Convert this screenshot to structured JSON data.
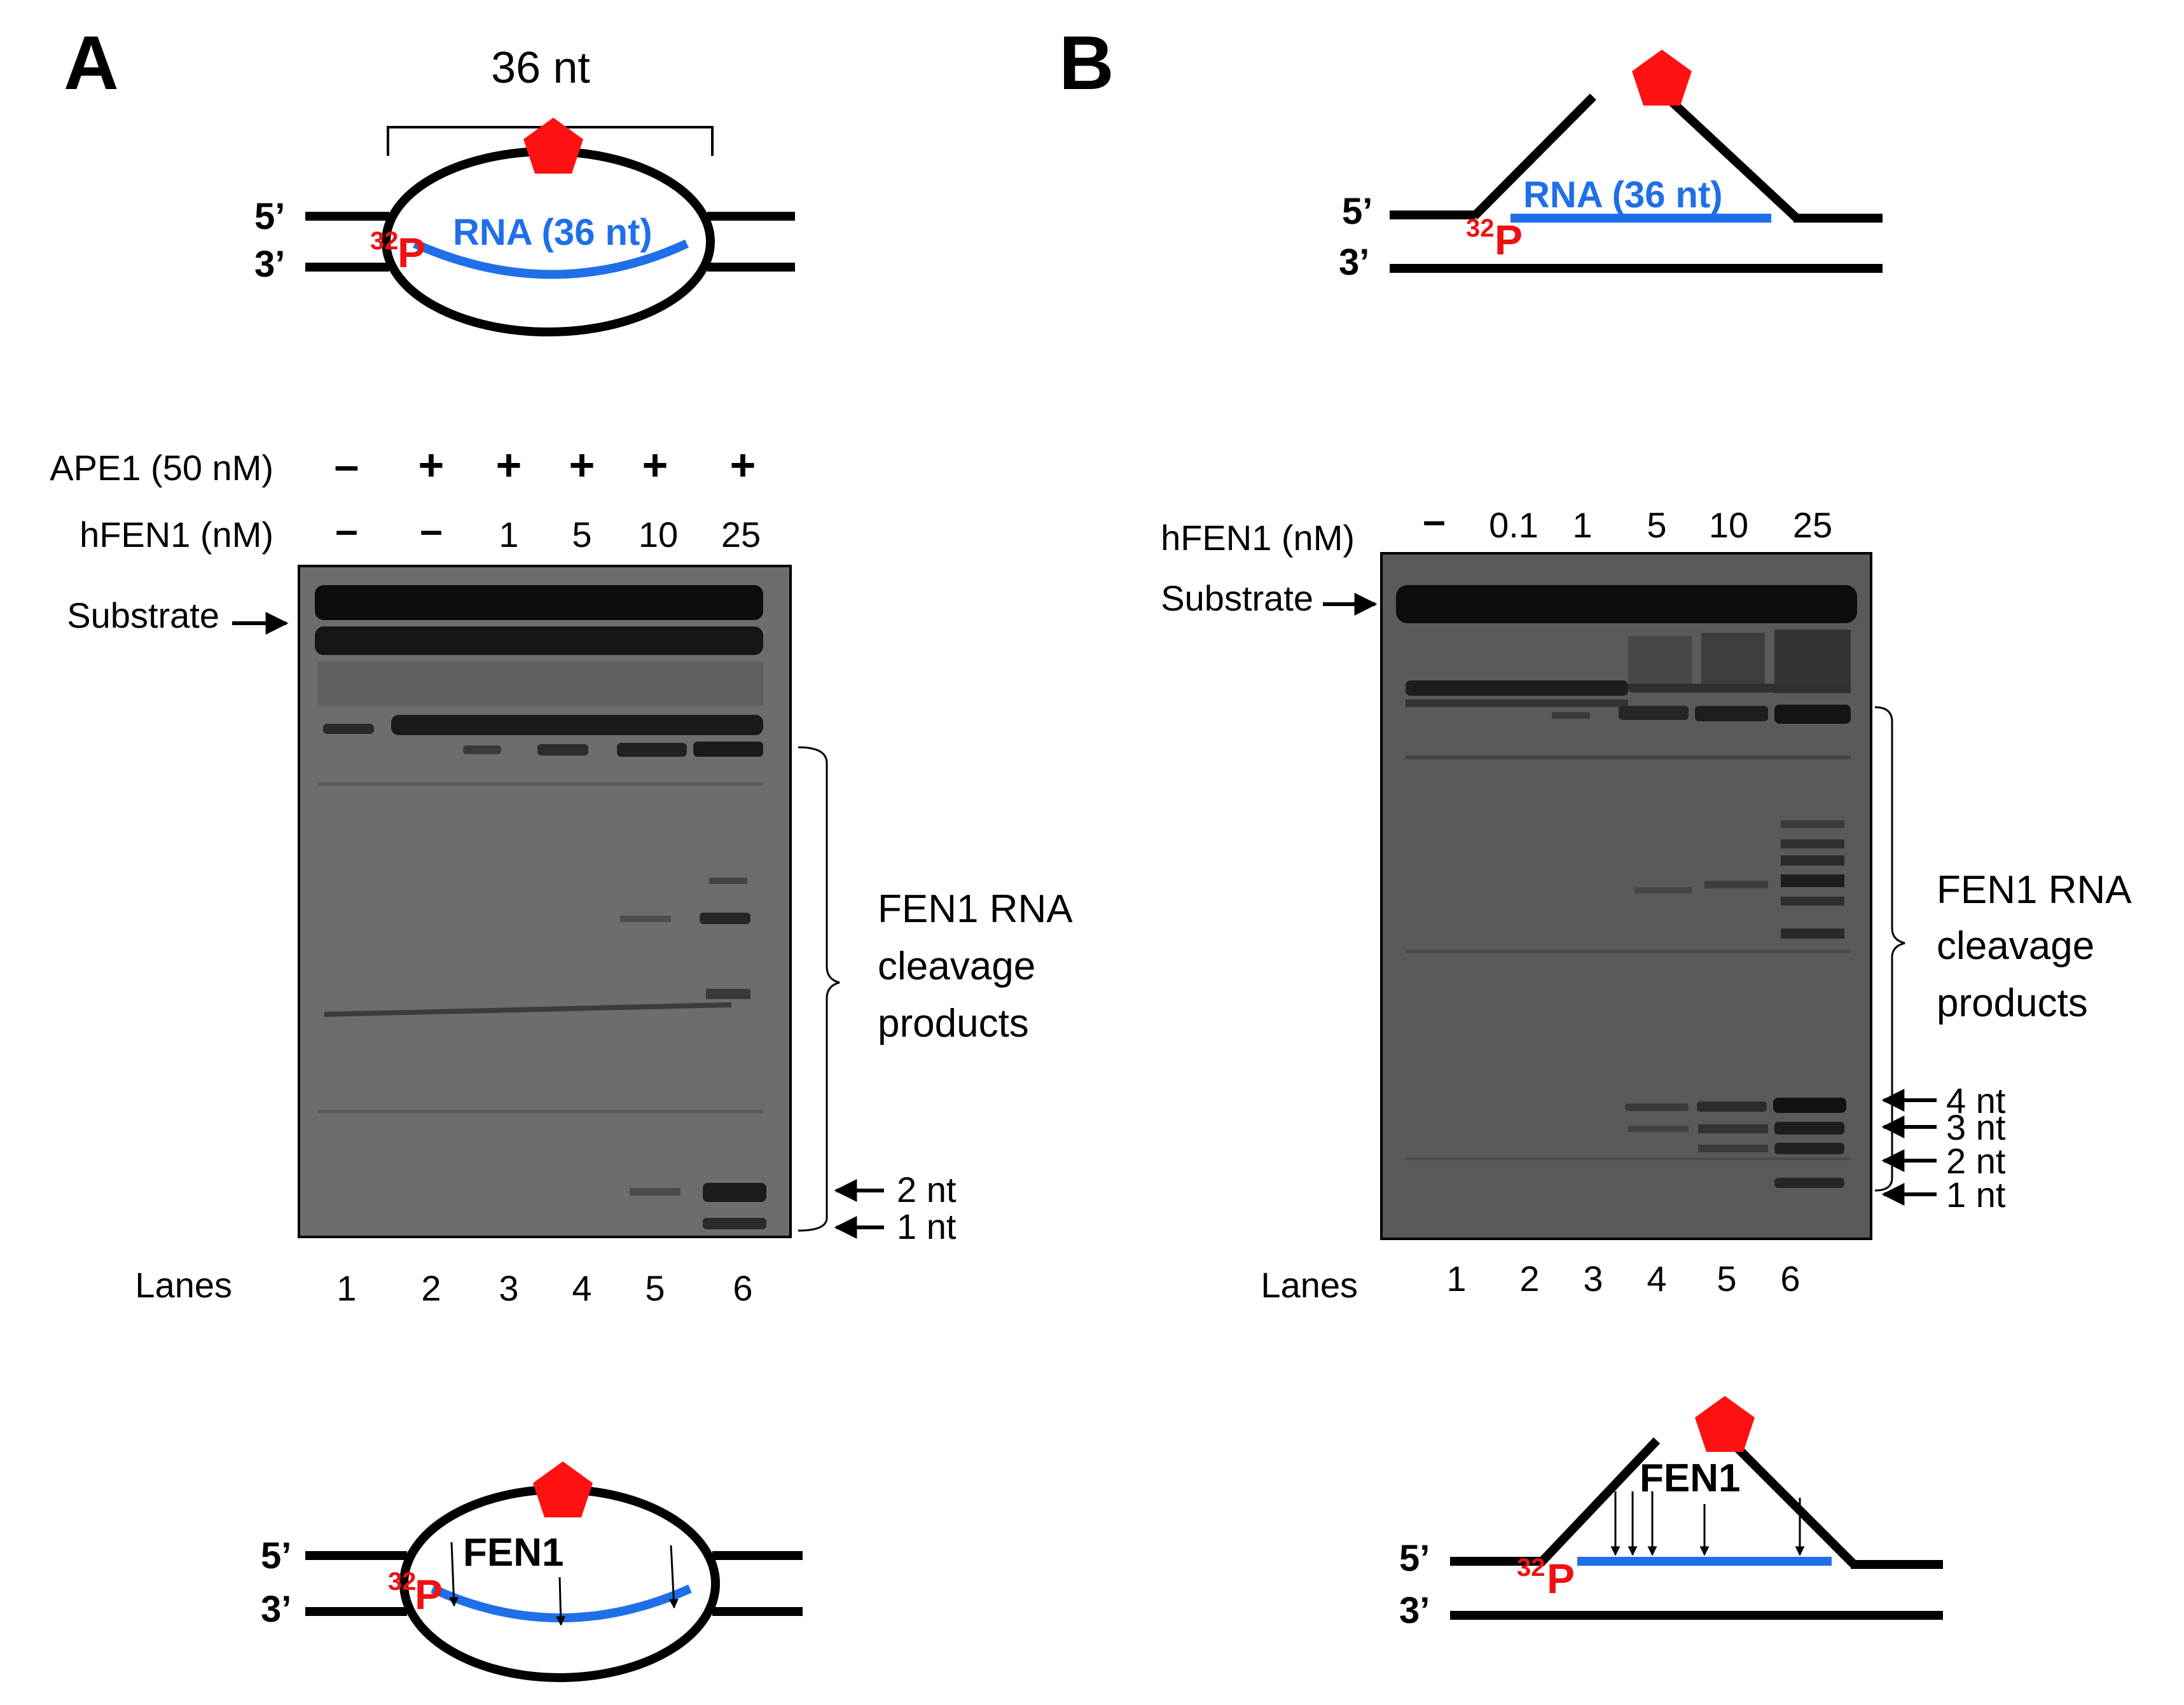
{
  "panel_a": {
    "letter": "A",
    "span_label": "36 nt",
    "strand_top": "5’",
    "strand_bottom": "3’",
    "label_p_sup": "32",
    "label_p": "P",
    "rna_label": "RNA (36 nt)",
    "ape1_label": "APE1 (50 nM)",
    "ape1_values": [
      "–",
      "+",
      "+",
      "+",
      "+",
      "+"
    ],
    "hfen1_label": "hFEN1 (nM)",
    "hfen1_values": [
      "–",
      "–",
      "1",
      "5",
      "10",
      "25"
    ],
    "substrate_label": "Substrate",
    "products_label": [
      "FEN1 RNA",
      "cleavage",
      "products"
    ],
    "nt_labels": [
      "2 nt",
      "1 nt"
    ],
    "lanes_label": "Lanes",
    "lane_numbers": [
      "1",
      "2",
      "3",
      "4",
      "5",
      "6"
    ],
    "fen1_label": "FEN1"
  },
  "panel_b": {
    "letter": "B",
    "strand_top": "5’",
    "strand_bottom": "3’",
    "label_p_sup": "32",
    "label_p": "P",
    "rna_label": "RNA (36 nt)",
    "hfen1_label": "hFEN1 (nM)",
    "hfen1_values": [
      "–",
      "0.1",
      "1",
      "5",
      "10",
      "25"
    ],
    "substrate_label": "Substrate",
    "products_label": [
      "FEN1 RNA",
      "cleavage",
      "products"
    ],
    "nt_labels": [
      "4 nt",
      "3 nt",
      "2 nt",
      "1 nt"
    ],
    "lanes_label": "Lanes",
    "lane_numbers": [
      "1",
      "2",
      "3",
      "4",
      "5",
      "6"
    ],
    "fen1_label": "FEN1"
  },
  "colors": {
    "rna": "#1f6fe8",
    "label_red": "#ee1111",
    "gel_a": "#6d6d6d",
    "gel_b": "#5a5a5a"
  }
}
